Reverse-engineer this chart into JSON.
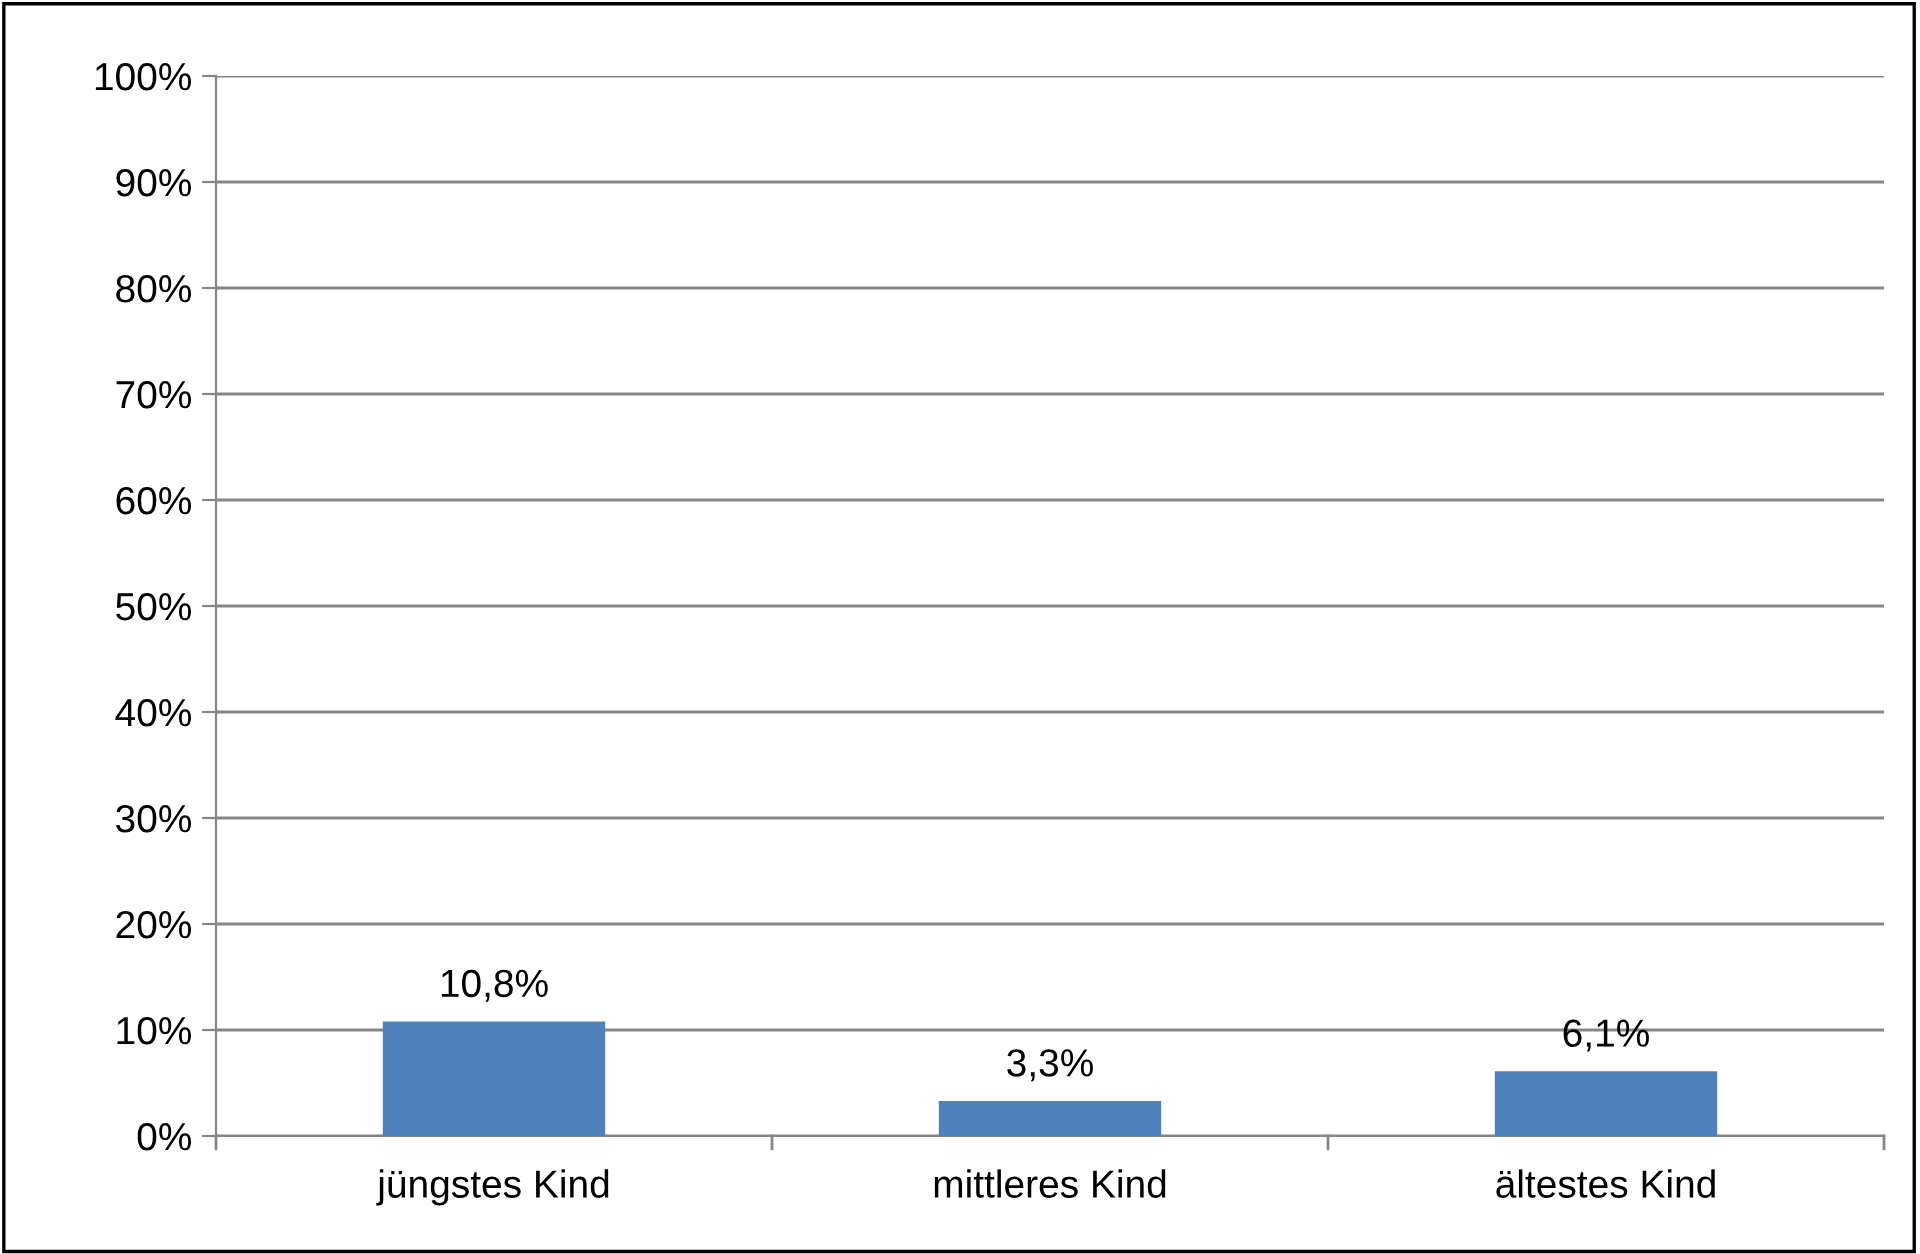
{
  "chart_data": {
    "type": "bar",
    "categories": [
      "jüngstes Kind",
      "mittleres Kind",
      "ältestes Kind"
    ],
    "values": [
      10.8,
      3.3,
      6.1
    ],
    "value_labels": [
      "10,8%",
      "3,3%",
      "6,1%"
    ],
    "color": "#4f81bd",
    "ylim": [
      0,
      100
    ],
    "yticks": [
      {
        "value": 0,
        "label": "0%"
      },
      {
        "value": 10,
        "label": "10%"
      },
      {
        "value": 20,
        "label": "20%"
      },
      {
        "value": 30,
        "label": "30%"
      },
      {
        "value": 40,
        "label": "40%"
      },
      {
        "value": 50,
        "label": "50%"
      },
      {
        "value": 60,
        "label": "60%"
      },
      {
        "value": 70,
        "label": "70%"
      },
      {
        "value": 80,
        "label": "80%"
      },
      {
        "value": 90,
        "label": "90%"
      },
      {
        "value": 100,
        "label": "100%"
      }
    ],
    "grid": "y",
    "legend": false
  }
}
